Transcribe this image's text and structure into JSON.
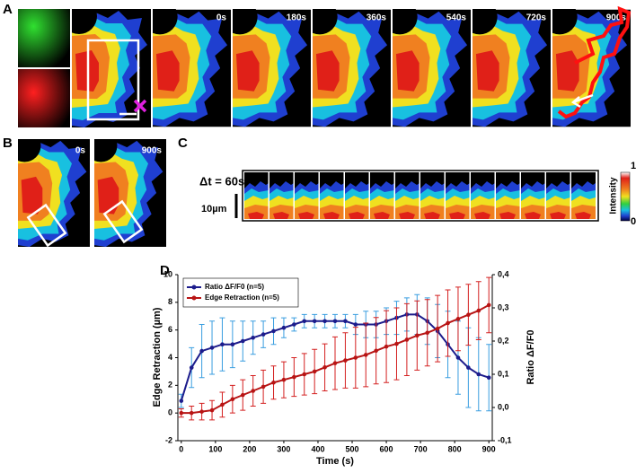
{
  "panel_labels": [
    "A",
    "B",
    "C",
    "D"
  ],
  "panel_a": {
    "time_labels": [
      "0s",
      "180s",
      "360s",
      "540s",
      "720s",
      "900s"
    ]
  },
  "panel_b": {
    "time_labels": [
      "0s",
      "900s"
    ]
  },
  "panel_c": {
    "interval": "Δt = 60s",
    "scale": "10µm",
    "colorbar": {
      "title": "Intensity",
      "max": "1",
      "min": "0"
    }
  },
  "chart_data": {
    "type": "line",
    "xlabel": "Time (s)",
    "ylabel": "Edge Retraction (µm)",
    "y2label": "Ratio ΔF/F0",
    "x": [
      0,
      30,
      60,
      90,
      120,
      150,
      180,
      210,
      240,
      270,
      300,
      330,
      360,
      390,
      420,
      450,
      480,
      510,
      540,
      570,
      600,
      630,
      660,
      690,
      720,
      750,
      780,
      810,
      840,
      870,
      900
    ],
    "series": [
      {
        "name": "Ratio ΔF/F0 (n=5)",
        "color": "#1c1c8c",
        "error_color": "#3a9ee0",
        "axis": "y2",
        "values": [
          0.02,
          0.12,
          0.17,
          0.18,
          0.19,
          0.19,
          0.2,
          0.21,
          0.22,
          0.23,
          0.24,
          0.25,
          0.26,
          0.26,
          0.26,
          0.26,
          0.26,
          0.25,
          0.25,
          0.25,
          0.26,
          0.27,
          0.28,
          0.28,
          0.26,
          0.23,
          0.19,
          0.15,
          0.12,
          0.1,
          0.09
        ],
        "errors": [
          0.02,
          0.06,
          0.08,
          0.08,
          0.08,
          0.07,
          0.06,
          0.05,
          0.04,
          0.04,
          0.03,
          0.02,
          0.02,
          0.02,
          0.02,
          0.02,
          0.02,
          0.03,
          0.04,
          0.04,
          0.04,
          0.05,
          0.05,
          0.06,
          0.07,
          0.08,
          0.1,
          0.11,
          0.12,
          0.11,
          0.1
        ]
      },
      {
        "name": "Edge Retraction (n=5)",
        "color": "#b81414",
        "error_color": "#d42020",
        "axis": "y",
        "values": [
          0,
          0,
          0.1,
          0.2,
          0.6,
          1,
          1.3,
          1.6,
          1.9,
          2.2,
          2.4,
          2.6,
          2.8,
          3,
          3.3,
          3.6,
          3.8,
          4,
          4.2,
          4.5,
          4.8,
          5,
          5.3,
          5.6,
          5.8,
          6.1,
          6.5,
          6.8,
          7.1,
          7.4,
          7.8
        ],
        "errors": [
          0.3,
          0.5,
          0.6,
          0.7,
          0.9,
          1,
          1.1,
          1.1,
          1.2,
          1.2,
          1.3,
          1.4,
          1.5,
          1.6,
          1.7,
          1.9,
          2,
          2.2,
          2.3,
          2.4,
          2.6,
          2.6,
          2.6,
          2.5,
          2.4,
          2.4,
          2.4,
          2.3,
          2.2,
          2.1,
          2
        ]
      }
    ],
    "xlim": [
      -10,
      910
    ],
    "xticks": [
      0,
      100,
      200,
      300,
      400,
      500,
      600,
      700,
      800,
      900
    ],
    "ylim": [
      -2,
      10
    ],
    "yticks": [
      -2,
      0,
      2,
      4,
      6,
      8,
      10
    ],
    "y2lim": [
      -0.1,
      0.4
    ],
    "y2ticks": [
      {
        "value": -0.1,
        "label": "-0,1"
      },
      {
        "value": 0,
        "label": "0,0"
      },
      {
        "value": 0.1,
        "label": "0,1"
      },
      {
        "value": 0.2,
        "label": "0,2"
      },
      {
        "value": 0.3,
        "label": "0,3"
      },
      {
        "value": 0.4,
        "label": "0,4"
      }
    ],
    "legend": "upper left"
  }
}
